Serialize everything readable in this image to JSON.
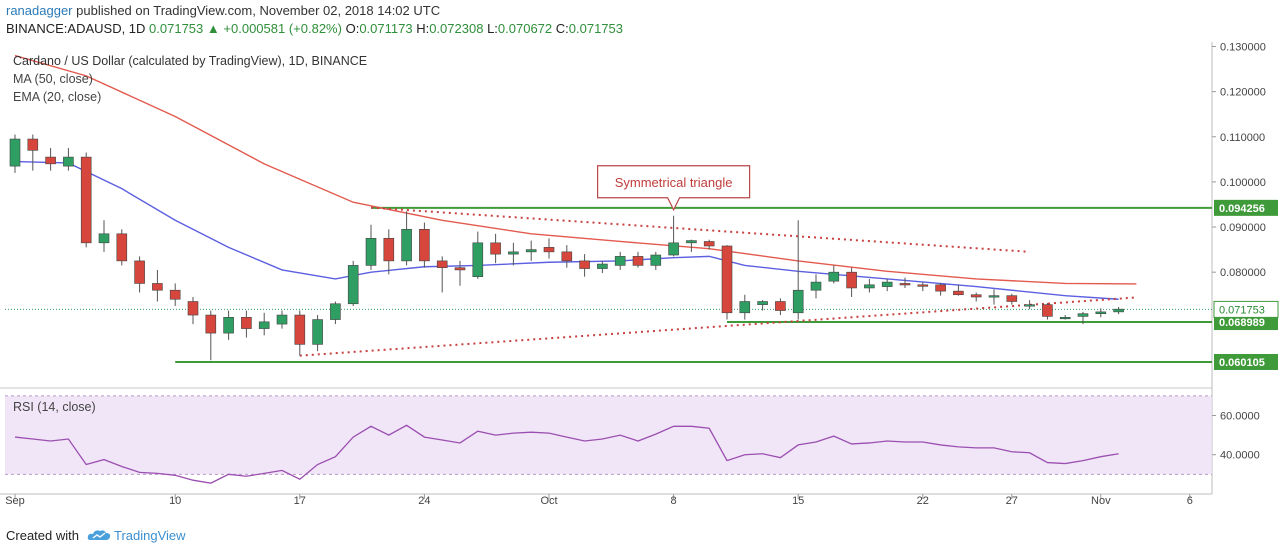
{
  "header": {
    "author": "ranadagger",
    "published_text": "published on TradingView.com, November 02, 2018 14:02 UTC",
    "symbol_line": "BINANCE:ADAUSD, 1D",
    "last_price": "0.071753",
    "change_arrow": "▲",
    "change": "+0.000581 (+0.82%)",
    "o_label": "O:",
    "o_value": "0.071173",
    "h_label": "H:",
    "h_value": "0.072308",
    "l_label": "L:",
    "l_value": "0.070672",
    "c_label": "C:",
    "c_value": "0.071753"
  },
  "footer": {
    "created_with": "Created with",
    "brand": "TradingView",
    "brand_icon": "tradingview-cloud-icon"
  },
  "colors": {
    "up": "#2e9e63",
    "down": "#d6463c",
    "ma50": "#e35a4f",
    "ema20": "#5b5fe0",
    "rsi": "#9b4fb0",
    "level": "#3f9a3a",
    "triangle": "#c84040"
  },
  "chart_data": [
    {
      "type": "candlestick",
      "title": "Cardano / US Dollar (calculated by TradingView), 1D, BINANCE",
      "indicators": [
        "MA (50, close)",
        "EMA (20, close)"
      ],
      "ylim": [
        0.055,
        0.131
      ],
      "y_ticks": [
        "0.130000",
        "0.120000",
        "0.110000",
        "0.100000",
        "0.090000",
        "0.080000"
      ],
      "x_ticks": [
        "Sep",
        "10",
        "17",
        "24",
        "Oct",
        "8",
        "15",
        "22",
        "27",
        "Nov",
        "6"
      ],
      "x_tick_days": [
        1,
        10,
        17,
        24,
        31,
        38,
        45,
        52,
        57,
        62,
        67
      ],
      "candles": [
        {
          "d": 1,
          "o": 0.1035,
          "h": 0.1105,
          "l": 0.102,
          "c": 0.1095
        },
        {
          "d": 2,
          "o": 0.1095,
          "h": 0.1105,
          "l": 0.1025,
          "c": 0.107
        },
        {
          "d": 3,
          "o": 0.1055,
          "h": 0.1075,
          "l": 0.1025,
          "c": 0.104
        },
        {
          "d": 4,
          "o": 0.1035,
          "h": 0.1075,
          "l": 0.1025,
          "c": 0.1055
        },
        {
          "d": 5,
          "o": 0.1055,
          "h": 0.1065,
          "l": 0.0855,
          "c": 0.0865
        },
        {
          "d": 6,
          "o": 0.0865,
          "h": 0.0915,
          "l": 0.0845,
          "c": 0.0885
        },
        {
          "d": 7,
          "o": 0.0885,
          "h": 0.0895,
          "l": 0.0815,
          "c": 0.0825
        },
        {
          "d": 8,
          "o": 0.0825,
          "h": 0.0835,
          "l": 0.0755,
          "c": 0.0775
        },
        {
          "d": 9,
          "o": 0.0775,
          "h": 0.0805,
          "l": 0.0735,
          "c": 0.076
        },
        {
          "d": 10,
          "o": 0.076,
          "h": 0.0775,
          "l": 0.0725,
          "c": 0.074
        },
        {
          "d": 11,
          "o": 0.0735,
          "h": 0.0745,
          "l": 0.0685,
          "c": 0.0705
        },
        {
          "d": 12,
          "o": 0.0705,
          "h": 0.0715,
          "l": 0.0605,
          "c": 0.0665
        },
        {
          "d": 13,
          "o": 0.0665,
          "h": 0.0715,
          "l": 0.065,
          "c": 0.07
        },
        {
          "d": 14,
          "o": 0.07,
          "h": 0.0715,
          "l": 0.0655,
          "c": 0.0675
        },
        {
          "d": 15,
          "o": 0.0675,
          "h": 0.071,
          "l": 0.066,
          "c": 0.069
        },
        {
          "d": 16,
          "o": 0.0685,
          "h": 0.0715,
          "l": 0.0675,
          "c": 0.0705
        },
        {
          "d": 17,
          "o": 0.0705,
          "h": 0.0715,
          "l": 0.0615,
          "c": 0.064
        },
        {
          "d": 18,
          "o": 0.064,
          "h": 0.0705,
          "l": 0.0625,
          "c": 0.0695
        },
        {
          "d": 19,
          "o": 0.0695,
          "h": 0.0735,
          "l": 0.0685,
          "c": 0.073
        },
        {
          "d": 20,
          "o": 0.073,
          "h": 0.0825,
          "l": 0.0725,
          "c": 0.0815
        },
        {
          "d": 21,
          "o": 0.0815,
          "h": 0.0905,
          "l": 0.0805,
          "c": 0.0875
        },
        {
          "d": 22,
          "o": 0.0875,
          "h": 0.0895,
          "l": 0.0795,
          "c": 0.0825
        },
        {
          "d": 23,
          "o": 0.0825,
          "h": 0.0935,
          "l": 0.0815,
          "c": 0.0895
        },
        {
          "d": 24,
          "o": 0.0895,
          "h": 0.091,
          "l": 0.081,
          "c": 0.0825
        },
        {
          "d": 25,
          "o": 0.0825,
          "h": 0.0835,
          "l": 0.0755,
          "c": 0.081
        },
        {
          "d": 26,
          "o": 0.081,
          "h": 0.0825,
          "l": 0.077,
          "c": 0.0805
        },
        {
          "d": 27,
          "o": 0.079,
          "h": 0.089,
          "l": 0.0785,
          "c": 0.0865
        },
        {
          "d": 28,
          "o": 0.0865,
          "h": 0.0885,
          "l": 0.082,
          "c": 0.084
        },
        {
          "d": 29,
          "o": 0.084,
          "h": 0.0865,
          "l": 0.0815,
          "c": 0.0845
        },
        {
          "d": 30,
          "o": 0.0845,
          "h": 0.087,
          "l": 0.0825,
          "c": 0.085
        },
        {
          "d": 31,
          "o": 0.0855,
          "h": 0.0875,
          "l": 0.083,
          "c": 0.0845
        },
        {
          "d": 32,
          "o": 0.0845,
          "h": 0.086,
          "l": 0.081,
          "c": 0.0825
        },
        {
          "d": 33,
          "o": 0.0825,
          "h": 0.084,
          "l": 0.079,
          "c": 0.0808
        },
        {
          "d": 34,
          "o": 0.0808,
          "h": 0.0825,
          "l": 0.0798,
          "c": 0.0818
        },
        {
          "d": 35,
          "o": 0.0815,
          "h": 0.0845,
          "l": 0.0805,
          "c": 0.0835
        },
        {
          "d": 36,
          "o": 0.0835,
          "h": 0.0845,
          "l": 0.081,
          "c": 0.0815
        },
        {
          "d": 37,
          "o": 0.0815,
          "h": 0.0845,
          "l": 0.0805,
          "c": 0.0838
        },
        {
          "d": 38,
          "o": 0.0838,
          "h": 0.0925,
          "l": 0.0835,
          "c": 0.0865
        },
        {
          "d": 39,
          "o": 0.0865,
          "h": 0.0872,
          "l": 0.0845,
          "c": 0.087
        },
        {
          "d": 40,
          "o": 0.0868,
          "h": 0.0872,
          "l": 0.085,
          "c": 0.0858
        },
        {
          "d": 41,
          "o": 0.0858,
          "h": 0.086,
          "l": 0.0695,
          "c": 0.071
        },
        {
          "d": 42,
          "o": 0.071,
          "h": 0.075,
          "l": 0.0695,
          "c": 0.0735
        },
        {
          "d": 43,
          "o": 0.0728,
          "h": 0.0738,
          "l": 0.0715,
          "c": 0.0735
        },
        {
          "d": 44,
          "o": 0.0735,
          "h": 0.0742,
          "l": 0.0705,
          "c": 0.0715
        },
        {
          "d": 45,
          "o": 0.071,
          "h": 0.0915,
          "l": 0.0695,
          "c": 0.076
        },
        {
          "d": 46,
          "o": 0.076,
          "h": 0.0795,
          "l": 0.0742,
          "c": 0.0778
        },
        {
          "d": 47,
          "o": 0.078,
          "h": 0.0815,
          "l": 0.0775,
          "c": 0.08
        },
        {
          "d": 48,
          "o": 0.08,
          "h": 0.081,
          "l": 0.0745,
          "c": 0.0765
        },
        {
          "d": 49,
          "o": 0.0765,
          "h": 0.0785,
          "l": 0.0755,
          "c": 0.0772
        },
        {
          "d": 50,
          "o": 0.0768,
          "h": 0.0785,
          "l": 0.0758,
          "c": 0.0778
        },
        {
          "d": 51,
          "o": 0.0775,
          "h": 0.0788,
          "l": 0.0765,
          "c": 0.0772
        },
        {
          "d": 52,
          "o": 0.0772,
          "h": 0.0778,
          "l": 0.0758,
          "c": 0.077
        },
        {
          "d": 53,
          "o": 0.0772,
          "h": 0.0776,
          "l": 0.0748,
          "c": 0.0758
        },
        {
          "d": 54,
          "o": 0.0758,
          "h": 0.0772,
          "l": 0.0748,
          "c": 0.075
        },
        {
          "d": 55,
          "o": 0.075,
          "h": 0.0755,
          "l": 0.0735,
          "c": 0.0745
        },
        {
          "d": 56,
          "o": 0.0745,
          "h": 0.0762,
          "l": 0.0728,
          "c": 0.0748
        },
        {
          "d": 57,
          "o": 0.0748,
          "h": 0.0752,
          "l": 0.0728,
          "c": 0.0735
        },
        {
          "d": 58,
          "o": 0.0728,
          "h": 0.0738,
          "l": 0.0718,
          "c": 0.0728
        },
        {
          "d": 59,
          "o": 0.0728,
          "h": 0.0732,
          "l": 0.0695,
          "c": 0.0702
        },
        {
          "d": 60,
          "o": 0.07,
          "h": 0.0705,
          "l": 0.0695,
          "c": 0.07
        },
        {
          "d": 61,
          "o": 0.0702,
          "h": 0.0712,
          "l": 0.0685,
          "c": 0.0708
        },
        {
          "d": 62,
          "o": 0.0708,
          "h": 0.072,
          "l": 0.07,
          "c": 0.0712
        },
        {
          "d": 63,
          "o": 0.0712,
          "h": 0.0723,
          "l": 0.0707,
          "c": 0.0718
        }
      ],
      "ma50": [
        {
          "d": 1,
          "v": 0.128
        },
        {
          "d": 5,
          "v": 0.1235
        },
        {
          "d": 10,
          "v": 0.1145
        },
        {
          "d": 15,
          "v": 0.104
        },
        {
          "d": 20,
          "v": 0.0955
        },
        {
          "d": 25,
          "v": 0.0915
        },
        {
          "d": 30,
          "v": 0.0885
        },
        {
          "d": 35,
          "v": 0.0868
        },
        {
          "d": 40,
          "v": 0.0852
        },
        {
          "d": 45,
          "v": 0.0825
        },
        {
          "d": 50,
          "v": 0.0802
        },
        {
          "d": 55,
          "v": 0.0785
        },
        {
          "d": 60,
          "v": 0.0775
        },
        {
          "d": 64,
          "v": 0.0774
        }
      ],
      "ema20": [
        {
          "d": 1,
          "v": 0.1045
        },
        {
          "d": 4,
          "v": 0.1042
        },
        {
          "d": 7,
          "v": 0.0985
        },
        {
          "d": 10,
          "v": 0.0915
        },
        {
          "d": 13,
          "v": 0.0855
        },
        {
          "d": 16,
          "v": 0.0805
        },
        {
          "d": 19,
          "v": 0.0785
        },
        {
          "d": 21,
          "v": 0.08
        },
        {
          "d": 24,
          "v": 0.0812
        },
        {
          "d": 27,
          "v": 0.0815
        },
        {
          "d": 31,
          "v": 0.0822
        },
        {
          "d": 35,
          "v": 0.0825
        },
        {
          "d": 38,
          "v": 0.0832
        },
        {
          "d": 40,
          "v": 0.0835
        },
        {
          "d": 42,
          "v": 0.0815
        },
        {
          "d": 45,
          "v": 0.0802
        },
        {
          "d": 50,
          "v": 0.0785
        },
        {
          "d": 55,
          "v": 0.0768
        },
        {
          "d": 60,
          "v": 0.0748
        },
        {
          "d": 63,
          "v": 0.074
        }
      ],
      "horizontal_levels": [
        {
          "value": 0.09425,
          "label": "0.094256",
          "from_day": 21,
          "to_day": 67
        },
        {
          "value": 0.06895,
          "label": "0.068989",
          "from_day": 41,
          "to_day": 67
        },
        {
          "value": 0.0601,
          "label": "0.060105",
          "from_day": 10,
          "to_day": 67
        }
      ],
      "last_price_label": "0.071753",
      "last_price_value": 0.071753,
      "trend_lines": [
        {
          "from": {
            "d": 21,
            "v": 0.0943
          },
          "to": {
            "d": 58,
            "v": 0.0845
          }
        },
        {
          "from": {
            "d": 17,
            "v": 0.0615
          },
          "to": {
            "d": 64,
            "v": 0.0744
          }
        }
      ],
      "annotation": {
        "text": "Symmetrical triangle",
        "day": 38,
        "value": 0.0925
      }
    },
    {
      "type": "line",
      "title": "RSI (14, close)",
      "ylim": [
        22,
        72
      ],
      "y_ticks": [
        "60.0000",
        "40.0000"
      ],
      "band": [
        30,
        70
      ],
      "values": [
        {
          "d": 1,
          "v": 49
        },
        {
          "d": 2,
          "v": 48
        },
        {
          "d": 3,
          "v": 47
        },
        {
          "d": 4,
          "v": 48
        },
        {
          "d": 5,
          "v": 35
        },
        {
          "d": 6,
          "v": 37.5
        },
        {
          "d": 7,
          "v": 34
        },
        {
          "d": 8,
          "v": 31
        },
        {
          "d": 9,
          "v": 30.5
        },
        {
          "d": 10,
          "v": 29.5
        },
        {
          "d": 11,
          "v": 27
        },
        {
          "d": 12,
          "v": 25.5
        },
        {
          "d": 13,
          "v": 30
        },
        {
          "d": 14,
          "v": 29
        },
        {
          "d": 15,
          "v": 30.5
        },
        {
          "d": 16,
          "v": 32
        },
        {
          "d": 17,
          "v": 27.5
        },
        {
          "d": 18,
          "v": 35
        },
        {
          "d": 19,
          "v": 39
        },
        {
          "d": 20,
          "v": 49
        },
        {
          "d": 21,
          "v": 54.5
        },
        {
          "d": 22,
          "v": 50
        },
        {
          "d": 23,
          "v": 55
        },
        {
          "d": 24,
          "v": 49
        },
        {
          "d": 25,
          "v": 47.5
        },
        {
          "d": 26,
          "v": 46
        },
        {
          "d": 27,
          "v": 52
        },
        {
          "d": 28,
          "v": 50
        },
        {
          "d": 29,
          "v": 51
        },
        {
          "d": 30,
          "v": 51.5
        },
        {
          "d": 31,
          "v": 51
        },
        {
          "d": 32,
          "v": 49
        },
        {
          "d": 33,
          "v": 47
        },
        {
          "d": 34,
          "v": 48
        },
        {
          "d": 35,
          "v": 50
        },
        {
          "d": 36,
          "v": 47
        },
        {
          "d": 37,
          "v": 50.5
        },
        {
          "d": 38,
          "v": 54.5
        },
        {
          "d": 39,
          "v": 54.5
        },
        {
          "d": 40,
          "v": 53.5
        },
        {
          "d": 41,
          "v": 37
        },
        {
          "d": 42,
          "v": 40
        },
        {
          "d": 43,
          "v": 40.5
        },
        {
          "d": 44,
          "v": 38.5
        },
        {
          "d": 45,
          "v": 45
        },
        {
          "d": 46,
          "v": 46.5
        },
        {
          "d": 47,
          "v": 49.5
        },
        {
          "d": 48,
          "v": 45.5
        },
        {
          "d": 49,
          "v": 46
        },
        {
          "d": 50,
          "v": 47
        },
        {
          "d": 51,
          "v": 46.5
        },
        {
          "d": 52,
          "v": 46.5
        },
        {
          "d": 53,
          "v": 45
        },
        {
          "d": 54,
          "v": 44
        },
        {
          "d": 55,
          "v": 43.5
        },
        {
          "d": 56,
          "v": 43.5
        },
        {
          "d": 57,
          "v": 41.5
        },
        {
          "d": 58,
          "v": 41
        },
        {
          "d": 59,
          "v": 36
        },
        {
          "d": 60,
          "v": 35.5
        },
        {
          "d": 61,
          "v": 37
        },
        {
          "d": 62,
          "v": 39
        },
        {
          "d": 63,
          "v": 40.5
        }
      ]
    }
  ]
}
